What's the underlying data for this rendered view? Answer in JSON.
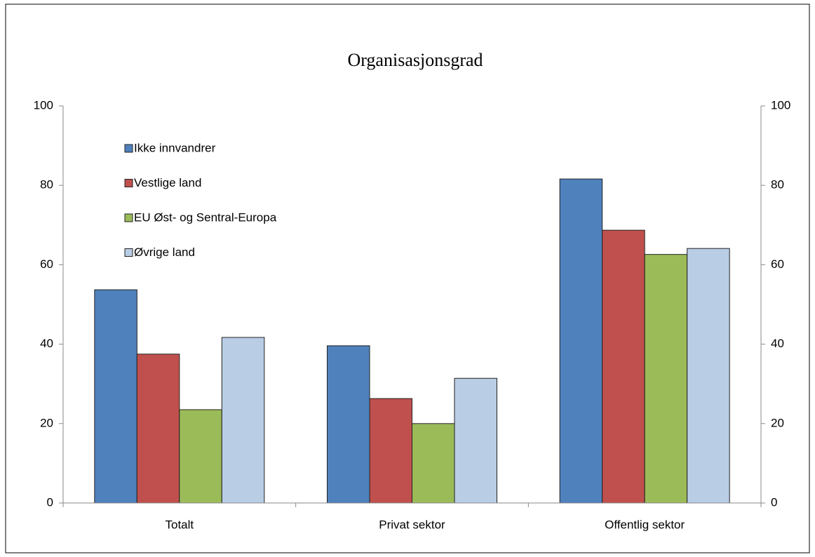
{
  "chart_data": {
    "type": "bar",
    "title": "Organisasjonsgrad",
    "categories": [
      "Totalt",
      "Privat sektor",
      "Offentlig sektor"
    ],
    "series": [
      {
        "name": "Ikke innvandrer",
        "color": "#4f81bd",
        "values": [
          53.7,
          39.6,
          81.6
        ]
      },
      {
        "name": "Vestlige land",
        "color": "#c0504d",
        "values": [
          37.5,
          26.3,
          68.7
        ]
      },
      {
        "name": "EU Øst- og Sentral-Europa",
        "color": "#9bbb59",
        "values": [
          23.5,
          20,
          62.6
        ]
      },
      {
        "name": "Øvrige land",
        "color": "#b9cde5",
        "values": [
          41.7,
          31.4,
          64.1
        ]
      }
    ],
    "ylim": [
      0,
      100
    ],
    "yticks": [
      0,
      20,
      40,
      60,
      80,
      100
    ],
    "y2lim": [
      0,
      100
    ],
    "y2ticks": [
      0,
      20,
      40,
      60,
      80,
      100
    ],
    "legend": "upper left"
  }
}
